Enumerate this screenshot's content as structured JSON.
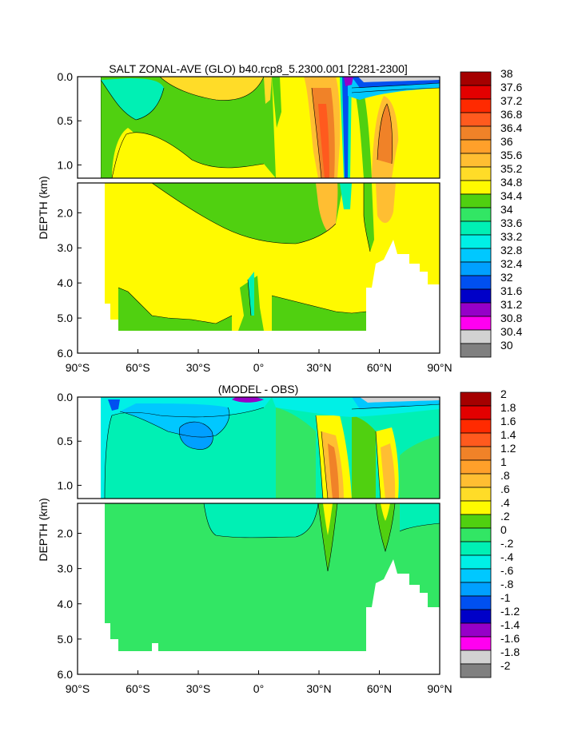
{
  "chart_data": [
    {
      "type": "heatmap",
      "title": "SALT ZONAL-AVE (GLO) b40.rcp8_5.2300.001 [2281-2300]",
      "ylabel": "DEPTH (km)",
      "xlabel": "",
      "xlim": [
        -90,
        90
      ],
      "ylim_upper_km": [
        0,
        1.15
      ],
      "ylim_lower_km": [
        1.15,
        6.0
      ],
      "x_ticks": [
        "90°S",
        "60°S",
        "30°S",
        "0°",
        "30°N",
        "60°N",
        "90°N"
      ],
      "x_tick_values": [
        -90,
        -60,
        -30,
        0,
        30,
        60,
        90
      ],
      "y_ticks_upper": [
        "0.0",
        "0.5",
        "1.0"
      ],
      "y_tick_values_upper": [
        0,
        0.5,
        1.0
      ],
      "y_ticks_lower": [
        "2.0",
        "3.0",
        "4.0",
        "5.0",
        "6.0"
      ],
      "y_tick_values_lower": [
        2,
        3,
        4,
        5,
        6
      ],
      "colorbar_labels": [
        "38",
        "37.6",
        "37.2",
        "36.8",
        "36.4",
        "36",
        "35.6",
        "35.2",
        "34.8",
        "34.4",
        "34",
        "33.6",
        "33.2",
        "32.8",
        "32.4",
        "32",
        "31.6",
        "31.2",
        "30.8",
        "30.4",
        "30"
      ],
      "colorbar_colors": [
        "#a50000",
        "#e30000",
        "#ff2a00",
        "#ff5a1e",
        "#f08228",
        "#ffa02a",
        "#ffbe32",
        "#ffdc28",
        "#fffa00",
        "#50d010",
        "#32e664",
        "#00f0b4",
        "#00f0e6",
        "#00c8ff",
        "#00a0ff",
        "#0050f0",
        "#0000c8",
        "#9600c8",
        "#ff00f0",
        "#d2d2d2",
        "#808080"
      ]
    },
    {
      "type": "heatmap",
      "title": "(MODEL - OBS)",
      "ylabel": "DEPTH (km)",
      "xlabel": "",
      "xlim": [
        -90,
        90
      ],
      "x_ticks": [
        "90°S",
        "60°S",
        "30°S",
        "0°",
        "30°N",
        "60°N",
        "90°N"
      ],
      "x_tick_values": [
        -90,
        -60,
        -30,
        0,
        30,
        60,
        90
      ],
      "y_ticks_upper": [
        "0.0",
        "0.5",
        "1.0"
      ],
      "y_tick_values_upper": [
        0,
        0.5,
        1.0
      ],
      "y_ticks_lower": [
        "2.0",
        "3.0",
        "4.0",
        "5.0",
        "6.0"
      ],
      "y_tick_values_lower": [
        2,
        3,
        4,
        5,
        6
      ],
      "colorbar_labels": [
        "2",
        "1.8",
        "1.6",
        "1.4",
        "1.2",
        "1",
        ".8",
        ".6",
        ".4",
        ".2",
        "0",
        "-.2",
        "-.4",
        "-.6",
        "-.8",
        "-1",
        "-1.2",
        "-1.4",
        "-1.6",
        "-1.8",
        "-2"
      ],
      "colorbar_colors": [
        "#a50000",
        "#e30000",
        "#ff2a00",
        "#ff5a1e",
        "#f08228",
        "#ffa02a",
        "#ffbe32",
        "#ffdc28",
        "#fffa00",
        "#50d010",
        "#32e664",
        "#00f0b4",
        "#00f0e6",
        "#00c8ff",
        "#00a0ff",
        "#0050f0",
        "#0000c8",
        "#9600c8",
        "#ff00f0",
        "#d2d2d2",
        "#808080"
      ]
    }
  ]
}
